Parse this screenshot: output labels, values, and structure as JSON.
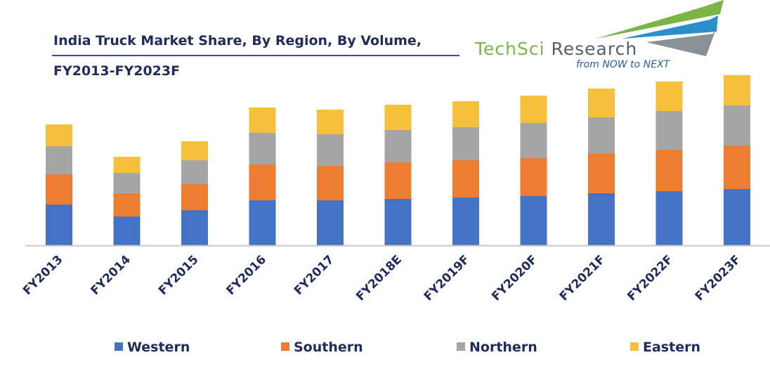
{
  "chart_data": {
    "type": "bar",
    "stacked": true,
    "title": "India Truck Market Share, By Region, By Volume, FY2013-FY2023F",
    "title_lines": [
      "India Truck Market Share, By Region, By Volume,",
      "FY2013-FY2023F"
    ],
    "xlabel": "",
    "ylabel": "",
    "y_axis_visible": false,
    "grid": false,
    "legend_position": "bottom",
    "ylim": [
      0,
      240
    ],
    "categories": [
      "FY2013",
      "FY2014",
      "FY2015",
      "FY2016",
      "FY2017",
      "FY2018E",
      "FY2019F",
      "FY2020F",
      "FY2021F",
      "FY2022F",
      "FY2023F"
    ],
    "series": [
      {
        "name": "Western",
        "color": "#4472c4",
        "values": [
          58,
          41,
          50,
          64,
          64,
          66,
          68,
          70,
          74,
          77,
          80
        ]
      },
      {
        "name": "Southern",
        "color": "#ed7d31",
        "values": [
          43,
          33,
          37,
          51,
          49,
          52,
          53,
          54,
          57,
          59,
          62
        ]
      },
      {
        "name": "Northern",
        "color": "#a5a5a5",
        "values": [
          40,
          29,
          34,
          45,
          45,
          46,
          47,
          50,
          51,
          55,
          57
        ]
      },
      {
        "name": "Eastern",
        "color": "#f6bf3c",
        "values": [
          31,
          23,
          27,
          36,
          35,
          36,
          37,
          39,
          41,
          42,
          43
        ]
      }
    ]
  },
  "logo": {
    "name_part_a": "TechSci",
    "name_part_b": "Research",
    "tagline": "from NOW to NEXT",
    "colors": {
      "green": "#7cb547",
      "gray": "#555f66",
      "blue": "#2d5e9c"
    }
  },
  "style": {
    "title_color": "#1f2b5c",
    "axis_color": "#c8c8c8"
  }
}
